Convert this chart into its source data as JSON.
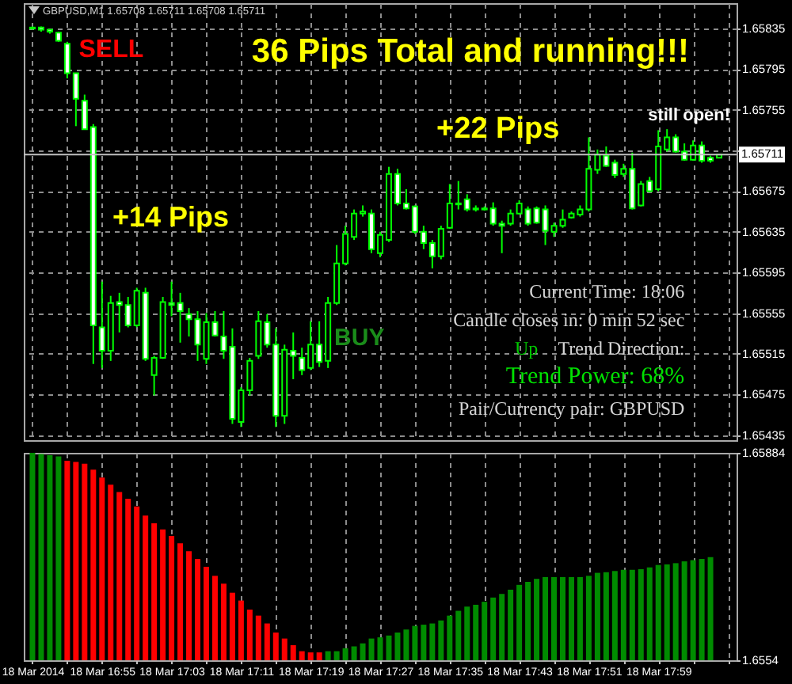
{
  "chart_data": [
    {
      "type": "candlestick",
      "title": "GBPUSD,M1 1.65708 1.65711 1.65708 1.65711",
      "color": "#00ff00",
      "x": [
        "2014-03-18T16:47",
        "2014-03-18T16:48",
        "2014-03-18T16:49",
        "2014-03-18T16:50",
        "2014-03-18T16:51",
        "2014-03-18T16:52",
        "2014-03-18T16:53",
        "2014-03-18T16:54",
        "2014-03-18T16:55",
        "2014-03-18T16:56",
        "2014-03-18T16:57",
        "2014-03-18T16:58",
        "2014-03-18T16:59",
        "2014-03-18T17:00",
        "2014-03-18T17:01",
        "2014-03-18T17:02",
        "2014-03-18T17:03",
        "2014-03-18T17:04",
        "2014-03-18T17:05",
        "2014-03-18T17:06",
        "2014-03-18T17:07",
        "2014-03-18T17:08",
        "2014-03-18T17:09",
        "2014-03-18T17:10",
        "2014-03-18T17:11",
        "2014-03-18T17:12",
        "2014-03-18T17:13",
        "2014-03-18T17:14",
        "2014-03-18T17:15",
        "2014-03-18T17:16",
        "2014-03-18T17:17",
        "2014-03-18T17:18",
        "2014-03-18T17:19",
        "2014-03-18T17:20",
        "2014-03-18T17:21",
        "2014-03-18T17:22",
        "2014-03-18T17:23",
        "2014-03-18T17:24",
        "2014-03-18T17:25",
        "2014-03-18T17:26",
        "2014-03-18T17:27",
        "2014-03-18T17:28",
        "2014-03-18T17:29",
        "2014-03-18T17:30",
        "2014-03-18T17:31",
        "2014-03-18T17:32",
        "2014-03-18T17:33",
        "2014-03-18T17:34",
        "2014-03-18T17:35",
        "2014-03-18T17:36",
        "2014-03-18T17:37",
        "2014-03-18T17:38",
        "2014-03-18T17:39",
        "2014-03-18T17:40",
        "2014-03-18T17:41",
        "2014-03-18T17:42",
        "2014-03-18T17:43",
        "2014-03-18T17:44",
        "2014-03-18T17:45",
        "2014-03-18T17:46",
        "2014-03-18T17:47",
        "2014-03-18T17:48",
        "2014-03-18T17:49",
        "2014-03-18T17:50",
        "2014-03-18T17:51",
        "2014-03-18T17:52",
        "2014-03-18T17:53",
        "2014-03-18T17:54",
        "2014-03-18T17:55",
        "2014-03-18T17:56",
        "2014-03-18T17:57",
        "2014-03-18T17:58",
        "2014-03-18T17:59",
        "2014-03-18T18:00",
        "2014-03-18T18:01",
        "2014-03-18T18:02",
        "2014-03-18T18:03",
        "2014-03-18T18:04",
        "2014-03-18T18:05",
        "2014-03-18T18:06"
      ],
      "ohlc": [
        [
          1.65836,
          1.65837,
          1.65834,
          1.65835
        ],
        [
          1.65836,
          1.65837,
          1.65832,
          1.65834
        ],
        [
          1.65834,
          1.65834,
          1.6583,
          1.65832
        ],
        [
          1.65831,
          1.65832,
          1.65822,
          1.65823
        ],
        [
          1.6582,
          1.65822,
          1.65786,
          1.65791
        ],
        [
          1.65791,
          1.65791,
          1.65739,
          1.65766
        ],
        [
          1.65764,
          1.6577,
          1.65736,
          1.65736
        ],
        [
          1.65738,
          1.65741,
          1.65505,
          1.65543
        ],
        [
          1.65541,
          1.65586,
          1.65501,
          1.65518
        ],
        [
          1.65518,
          1.65572,
          1.65508,
          1.65565
        ],
        [
          1.65566,
          1.65575,
          1.65536,
          1.65563
        ],
        [
          1.65563,
          1.65571,
          1.65541,
          1.65543
        ],
        [
          1.65543,
          1.6558,
          1.65541,
          1.65577
        ],
        [
          1.65575,
          1.6558,
          1.65508,
          1.6551
        ],
        [
          1.65494,
          1.65513,
          1.65474,
          1.65511
        ],
        [
          1.65511,
          1.65571,
          1.6551,
          1.65566
        ],
        [
          1.65565,
          1.65586,
          1.65552,
          1.65563
        ],
        [
          1.65565,
          1.65575,
          1.65526,
          1.65557
        ],
        [
          1.65554,
          1.6556,
          1.65532,
          1.65549
        ],
        [
          1.65549,
          1.65557,
          1.65508,
          1.65524
        ],
        [
          1.6551,
          1.65555,
          1.65505,
          1.65546
        ],
        [
          1.65546,
          1.65557,
          1.65532,
          1.65533
        ],
        [
          1.65532,
          1.65557,
          1.6551,
          1.65518
        ],
        [
          1.65522,
          1.6554,
          1.65446,
          1.65451
        ],
        [
          1.65448,
          1.65482,
          1.65443,
          1.65479
        ],
        [
          1.65479,
          1.65511,
          1.65474,
          1.65508
        ],
        [
          1.65513,
          1.65557,
          1.6551,
          1.65547
        ],
        [
          1.65546,
          1.65554,
          1.65521,
          1.65524
        ],
        [
          1.65524,
          1.6554,
          1.65443,
          1.65454
        ],
        [
          1.65454,
          1.65524,
          1.65446,
          1.65519
        ],
        [
          1.65518,
          1.65536,
          1.6549,
          1.65513
        ],
        [
          1.65511,
          1.65521,
          1.65494,
          1.65499
        ],
        [
          1.65501,
          1.65547,
          1.65499,
          1.65524
        ],
        [
          1.65524,
          1.65547,
          1.65502,
          1.65507
        ],
        [
          1.65508,
          1.65571,
          1.65501,
          1.65565
        ],
        [
          1.65565,
          1.65622,
          1.65563,
          1.65604
        ],
        [
          1.65604,
          1.65641,
          1.65602,
          1.65633
        ],
        [
          1.6563,
          1.65657,
          1.65627,
          1.65653
        ],
        [
          1.65653,
          1.65661,
          1.6565,
          1.65655
        ],
        [
          1.65653,
          1.65657,
          1.65614,
          1.65618
        ],
        [
          1.65614,
          1.65635,
          1.6561,
          1.65632
        ],
        [
          1.65627,
          1.65699,
          1.65625,
          1.65692
        ],
        [
          1.65692,
          1.65697,
          1.65661,
          1.65663
        ],
        [
          1.65663,
          1.65677,
          1.65657,
          1.65658
        ],
        [
          1.6566,
          1.65661,
          1.65633,
          1.65635
        ],
        [
          1.65635,
          1.65641,
          1.65618,
          1.65624
        ],
        [
          1.65624,
          1.65627,
          1.65599,
          1.65611
        ],
        [
          1.65611,
          1.65641,
          1.65608,
          1.65638
        ],
        [
          1.65639,
          1.65682,
          1.65638,
          1.65663
        ],
        [
          1.65663,
          1.65685,
          1.65657,
          1.65662
        ],
        [
          1.65667,
          1.65672,
          1.65655,
          1.65657
        ],
        [
          1.65658,
          1.65661,
          1.65655,
          1.65657
        ],
        [
          1.65658,
          1.6566,
          1.65656,
          1.65657
        ],
        [
          1.65658,
          1.65664,
          1.65641,
          1.65643
        ],
        [
          1.65643,
          1.65646,
          1.65614,
          1.65641
        ],
        [
          1.65643,
          1.65657,
          1.65641,
          1.65653
        ],
        [
          1.65653,
          1.65666,
          1.65652,
          1.65663
        ],
        [
          1.65657,
          1.6566,
          1.65641,
          1.65643
        ],
        [
          1.65658,
          1.6566,
          1.65643,
          1.65644
        ],
        [
          1.65657,
          1.65661,
          1.65622,
          1.65636
        ],
        [
          1.65635,
          1.65644,
          1.6563,
          1.65641
        ],
        [
          1.65641,
          1.65657,
          1.65639,
          1.65647
        ],
        [
          1.65649,
          1.65655,
          1.65648,
          1.65653
        ],
        [
          1.65652,
          1.65661,
          1.6565,
          1.65657
        ],
        [
          1.65657,
          1.65728,
          1.65655,
          1.65697
        ],
        [
          1.65696,
          1.65716,
          1.65692,
          1.65711
        ],
        [
          1.6571,
          1.65719,
          1.65699,
          1.657
        ],
        [
          1.65703,
          1.65706,
          1.65688,
          1.65691
        ],
        [
          1.65692,
          1.65702,
          1.65689,
          1.65697
        ],
        [
          1.65697,
          1.65713,
          1.65657,
          1.65658
        ],
        [
          1.65661,
          1.65685,
          1.6566,
          1.65682
        ],
        [
          1.65685,
          1.65689,
          1.65674,
          1.65675
        ],
        [
          1.65677,
          1.65735,
          1.65675,
          1.65719
        ],
        [
          1.65716,
          1.65736,
          1.65714,
          1.65728
        ],
        [
          1.65728,
          1.65731,
          1.65713,
          1.65714
        ],
        [
          1.65714,
          1.65722,
          1.65705,
          1.65706
        ],
        [
          1.65706,
          1.65725,
          1.65705,
          1.6572
        ],
        [
          1.6572,
          1.65724,
          1.65703,
          1.65705
        ],
        [
          1.65708,
          1.6571,
          1.65703,
          1.65705
        ],
        [
          1.65708,
          1.65711,
          1.65708,
          1.65711
        ]
      ],
      "xlim": [
        "2014-03-18T16:46",
        "2014-03-18T18:08"
      ],
      "xticks": [
        "2014-03-18T16:47",
        "2014-03-18T16:51",
        "2014-03-18T16:55",
        "2014-03-18T16:59",
        "2014-03-18T17:03",
        "2014-03-18T17:07",
        "2014-03-18T17:11",
        "2014-03-18T17:15",
        "2014-03-18T17:19",
        "2014-03-18T17:23",
        "2014-03-18T17:27",
        "2014-03-18T17:31",
        "2014-03-18T17:35",
        "2014-03-18T17:39",
        "2014-03-18T17:43",
        "2014-03-18T17:47",
        "2014-03-18T17:51",
        "2014-03-18T17:55",
        "2014-03-18T17:59",
        "2014-03-18T18:03",
        "2014-03-18T18:07"
      ],
      "ylim": [
        1.6543,
        1.6586
      ],
      "yticks": [
        1.65835,
        1.65795,
        1.65755,
        {
          "value": 1.65715,
          "label": null
        },
        1.65675,
        1.65635,
        1.65595,
        1.65555,
        1.65515,
        1.65475,
        1.65435
      ],
      "tick_labels": "y",
      "grid": true,
      "ref_lines": [
        {
          "axis": "y",
          "value": 1.65711,
          "label": "1.65711",
          "color": "#c0c0c0"
        }
      ],
      "annotations": [
        "SELL",
        "36 Pips Total and running!!!",
        "+14 Pips",
        "+22 Pips",
        "still open!",
        "BUY",
        "Current Time: 18:06",
        "Candle closes in: 0 min 52 sec",
        "Up",
        "Trend Direction:",
        "Trend Power: 68%",
        "Pair/Currency pair: GBPUSD"
      ]
    },
    {
      "type": "bar",
      "x": [
        "2014-03-18T16:47",
        "2014-03-18T16:48",
        "2014-03-18T16:49",
        "2014-03-18T16:50",
        "2014-03-18T16:51",
        "2014-03-18T16:52",
        "2014-03-18T16:53",
        "2014-03-18T16:54",
        "2014-03-18T16:55",
        "2014-03-18T16:56",
        "2014-03-18T16:57",
        "2014-03-18T16:58",
        "2014-03-18T16:59",
        "2014-03-18T17:00",
        "2014-03-18T17:01",
        "2014-03-18T17:02",
        "2014-03-18T17:03",
        "2014-03-18T17:04",
        "2014-03-18T17:05",
        "2014-03-18T17:06",
        "2014-03-18T17:07",
        "2014-03-18T17:08",
        "2014-03-18T17:09",
        "2014-03-18T17:10",
        "2014-03-18T17:11",
        "2014-03-18T17:12",
        "2014-03-18T17:13",
        "2014-03-18T17:14",
        "2014-03-18T17:15",
        "2014-03-18T17:16",
        "2014-03-18T17:17",
        "2014-03-18T17:18",
        "2014-03-18T17:19",
        "2014-03-18T17:20",
        "2014-03-18T17:21",
        "2014-03-18T17:22",
        "2014-03-18T17:23",
        "2014-03-18T17:24",
        "2014-03-18T17:25",
        "2014-03-18T17:26",
        "2014-03-18T17:27",
        "2014-03-18T17:28",
        "2014-03-18T17:29",
        "2014-03-18T17:30",
        "2014-03-18T17:31",
        "2014-03-18T17:32",
        "2014-03-18T17:33",
        "2014-03-18T17:34",
        "2014-03-18T17:35",
        "2014-03-18T17:36",
        "2014-03-18T17:37",
        "2014-03-18T17:38",
        "2014-03-18T17:39",
        "2014-03-18T17:40",
        "2014-03-18T17:41",
        "2014-03-18T17:42",
        "2014-03-18T17:43",
        "2014-03-18T17:44",
        "2014-03-18T17:45",
        "2014-03-18T17:46",
        "2014-03-18T17:47",
        "2014-03-18T17:48",
        "2014-03-18T17:49",
        "2014-03-18T17:50",
        "2014-03-18T17:51",
        "2014-03-18T17:52",
        "2014-03-18T17:53",
        "2014-03-18T17:54",
        "2014-03-18T17:55",
        "2014-03-18T17:56",
        "2014-03-18T17:57",
        "2014-03-18T17:58",
        "2014-03-18T17:59",
        "2014-03-18T18:00",
        "2014-03-18T18:01",
        "2014-03-18T18:02",
        "2014-03-18T18:03",
        "2014-03-18T18:04",
        "2014-03-18T18:05"
      ],
      "base": [
        1.6554,
        1.6554,
        1.6554,
        1.6554,
        1.6554,
        1.6554,
        1.6554,
        1.6554,
        1.6554,
        1.6554,
        1.6554,
        1.6554,
        1.6554,
        1.6554,
        1.6554,
        1.6554,
        1.6554,
        1.6554,
        1.6554,
        1.6554,
        1.6554,
        1.6554,
        1.6554,
        1.6554,
        1.6554,
        1.6554,
        1.6554,
        1.6554,
        1.6554,
        1.6554,
        1.6554,
        1.6554,
        1.6554,
        1.6554,
        1.6554,
        1.6554,
        1.6554,
        1.6554,
        1.6554,
        1.6554,
        1.6554,
        1.6554,
        1.6554,
        1.6554,
        1.6554,
        1.6554,
        1.6554,
        1.6554,
        1.6554,
        1.6554,
        1.6554,
        1.6554,
        1.6554,
        1.6554,
        1.6554,
        1.6554,
        1.6554,
        1.6554,
        1.6554,
        1.6554,
        1.6554,
        1.6554,
        1.6554,
        1.6554,
        1.6554,
        1.6554,
        1.6554,
        1.6554,
        1.6554,
        1.6554,
        1.6554,
        1.6554,
        1.6554,
        1.6554,
        1.6554,
        1.6554,
        1.6554,
        1.6554,
        1.6554
      ],
      "values": [
        0.00344,
        0.00342,
        0.0034,
        0.00338,
        0.00331,
        0.00329,
        0.00326,
        0.00316,
        0.00303,
        0.00291,
        0.00279,
        0.00268,
        0.00255,
        0.0024,
        0.00227,
        0.00217,
        0.00206,
        0.00194,
        0.00181,
        0.00168,
        0.00155,
        0.0014,
        0.00127,
        0.00112,
        0.00099,
        0.00084,
        0.00074,
        0.00061,
        0.00046,
        0.00036,
        0.00025,
        0.00015,
        0.00013,
        0.00013,
        0.00015,
        0.00015,
        0.0002,
        0.00023,
        0.00028,
        0.00036,
        0.00038,
        0.00041,
        0.00046,
        0.00051,
        0.00057,
        0.00059,
        0.00061,
        0.00066,
        0.00074,
        0.00082,
        0.00089,
        0.00092,
        0.00097,
        0.00104,
        0.0011,
        0.00117,
        0.00125,
        0.0013,
        0.00135,
        0.00138,
        0.00138,
        0.00138,
        0.00138,
        0.00138,
        0.0014,
        0.00145,
        0.00146,
        0.00148,
        0.0015,
        0.0015,
        0.00151,
        0.00154,
        0.00158,
        0.00159,
        0.00161,
        0.00164,
        0.00166,
        0.00168,
        0.00171
      ],
      "colors": [
        "#008c00",
        "#008c00",
        "#008c00",
        "#008c00",
        "#ff0000",
        "#ff0000",
        "#ff0000",
        "#ff0000",
        "#ff0000",
        "#ff0000",
        "#ff0000",
        "#ff0000",
        "#ff0000",
        "#ff0000",
        "#ff0000",
        "#ff0000",
        "#ff0000",
        "#ff0000",
        "#ff0000",
        "#ff0000",
        "#ff0000",
        "#ff0000",
        "#ff0000",
        "#ff0000",
        "#ff0000",
        "#ff0000",
        "#ff0000",
        "#ff0000",
        "#ff0000",
        "#ff0000",
        "#ff0000",
        "#ff0000",
        "#ff0000",
        "#ff0000",
        "#008c00",
        "#008c00",
        "#008c00",
        "#008c00",
        "#008c00",
        "#008c00",
        "#008c00",
        "#008c00",
        "#008c00",
        "#008c00",
        "#008c00",
        "#008c00",
        "#008c00",
        "#008c00",
        "#008c00",
        "#008c00",
        "#008c00",
        "#008c00",
        "#008c00",
        "#008c00",
        "#008c00",
        "#008c00",
        "#008c00",
        "#008c00",
        "#008c00",
        "#008c00",
        "#008c00",
        "#008c00",
        "#008c00",
        "#008c00",
        "#008c00",
        "#008c00",
        "#008c00",
        "#008c00",
        "#008c00",
        "#008c00",
        "#008c00",
        "#008c00",
        "#008c00",
        "#008c00",
        "#008c00",
        "#008c00",
        "#008c00",
        "#008c00",
        "#008c00"
      ],
      "xlim": [
        "2014-03-18T16:46",
        "2014-03-18T18:08"
      ],
      "xticks": [
        {
          "value": "2014-03-18T16:47",
          "label": "18 Mar 2014"
        },
        {
          "value": "2014-03-18T16:51",
          "label": null
        },
        {
          "value": "2014-03-18T16:55",
          "label": "18 Mar 16:55"
        },
        {
          "value": "2014-03-18T16:59",
          "label": null
        },
        {
          "value": "2014-03-18T17:03",
          "label": "18 Mar 17:03"
        },
        {
          "value": "2014-03-18T17:07",
          "label": null
        },
        {
          "value": "2014-03-18T17:11",
          "label": "18 Mar 17:11"
        },
        {
          "value": "2014-03-18T17:15",
          "label": null
        },
        {
          "value": "2014-03-18T17:19",
          "label": "18 Mar 17:19"
        },
        {
          "value": "2014-03-18T17:23",
          "label": null
        },
        {
          "value": "2014-03-18T17:27",
          "label": "18 Mar 17:27"
        },
        {
          "value": "2014-03-18T17:31",
          "label": null
        },
        {
          "value": "2014-03-18T17:35",
          "label": "18 Mar 17:35"
        },
        {
          "value": "2014-03-18T17:39",
          "label": null
        },
        {
          "value": "2014-03-18T17:43",
          "label": "18 Mar 17:43"
        },
        {
          "value": "2014-03-18T17:47",
          "label": null
        },
        {
          "value": "2014-03-18T17:51",
          "label": "18 Mar 17:51"
        },
        {
          "value": "2014-03-18T17:55",
          "label": null
        },
        {
          "value": "2014-03-18T17:59",
          "label": "18 Mar 17:59"
        },
        {
          "value": "2014-03-18T18:03",
          "label": null
        },
        {
          "value": "2014-03-18T18:07",
          "label": null
        }
      ],
      "ylim": [
        1.6554,
        1.65884
      ],
      "yticks": [
        1.65884,
        1.6554
      ],
      "grid": "x"
    }
  ]
}
